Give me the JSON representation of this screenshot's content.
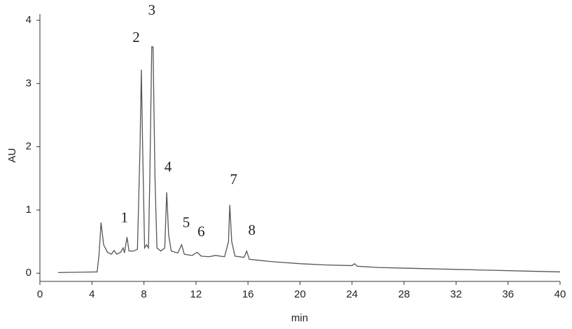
{
  "chart_data": {
    "type": "line",
    "x_label": "min",
    "y_label": "AU",
    "x": [
      1.4,
      4.4,
      4.55,
      4.7,
      4.9,
      5.2,
      5.5,
      5.7,
      5.9,
      6.2,
      6.4,
      6.5,
      6.7,
      6.85,
      7.2,
      7.5,
      7.7,
      7.8,
      7.9,
      8.05,
      8.2,
      8.35,
      8.45,
      8.6,
      8.7,
      8.85,
      9.0,
      9.3,
      9.6,
      9.75,
      9.9,
      10.1,
      10.6,
      10.9,
      11.1,
      11.7,
      12.1,
      12.4,
      13.0,
      13.5,
      14.2,
      14.5,
      14.6,
      14.75,
      15.0,
      15.7,
      15.9,
      16.1,
      17.0,
      18.0,
      20.0,
      22.0,
      24.0,
      24.2,
      24.4,
      26.0,
      28.0,
      30.0,
      34.0,
      38.0,
      40.0
    ],
    "values": [
      0.01,
      0.02,
      0.3,
      0.8,
      0.45,
      0.33,
      0.3,
      0.36,
      0.3,
      0.33,
      0.4,
      0.32,
      0.57,
      0.35,
      0.35,
      0.38,
      2.0,
      3.22,
      2.0,
      0.4,
      0.45,
      0.4,
      1.5,
      3.58,
      3.58,
      1.5,
      0.4,
      0.35,
      0.4,
      1.28,
      0.6,
      0.35,
      0.32,
      0.45,
      0.3,
      0.28,
      0.33,
      0.27,
      0.26,
      0.28,
      0.26,
      0.5,
      1.08,
      0.5,
      0.27,
      0.25,
      0.35,
      0.22,
      0.2,
      0.18,
      0.15,
      0.13,
      0.12,
      0.15,
      0.11,
      0.09,
      0.08,
      0.07,
      0.05,
      0.03,
      0.02
    ],
    "color": "#555555",
    "xlim": [
      0,
      40
    ],
    "xticks": [
      0,
      4,
      8,
      12,
      16,
      20,
      24,
      28,
      32,
      36,
      40
    ],
    "ylim": [
      -0.13,
      4.1
    ],
    "yticks": [
      0,
      1,
      2,
      3,
      4
    ],
    "annotations": [
      {
        "text": "1",
        "x": 6.5,
        "y": 0.86
      },
      {
        "text": "2",
        "x": 7.4,
        "y": 3.71
      },
      {
        "text": "3",
        "x": 8.6,
        "y": 4.14
      },
      {
        "text": "4",
        "x": 9.85,
        "y": 1.66
      },
      {
        "text": "5",
        "x": 11.25,
        "y": 0.78
      },
      {
        "text": "6",
        "x": 12.4,
        "y": 0.64
      },
      {
        "text": "7",
        "x": 14.9,
        "y": 1.46
      },
      {
        "text": "8",
        "x": 16.3,
        "y": 0.66
      }
    ]
  }
}
